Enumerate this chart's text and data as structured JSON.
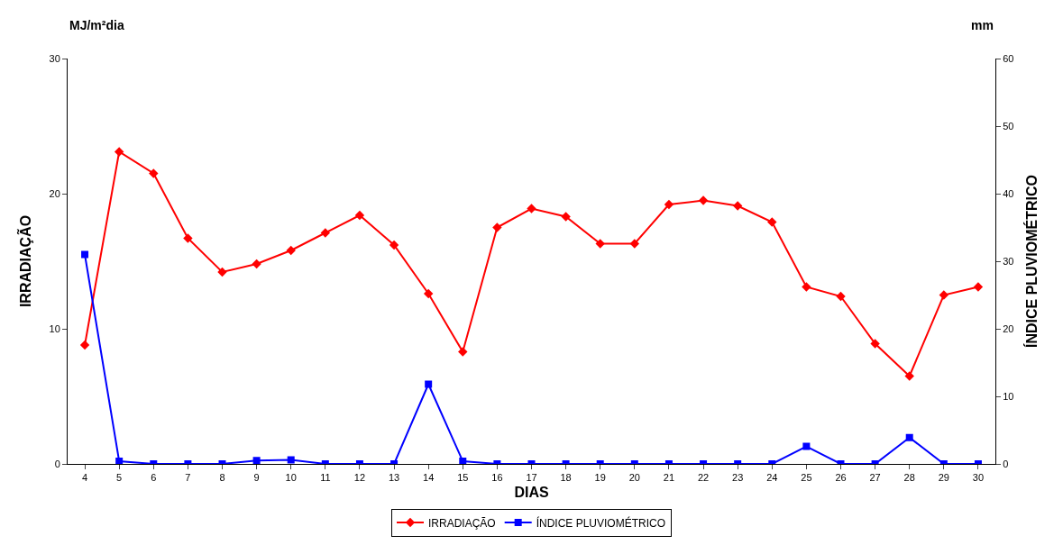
{
  "chart_data": {
    "type": "line",
    "xlabel": "DIAS",
    "ylabel": "IRRADIAÇÃO",
    "y2label": "ÍNDICE PLUVIOMÉTRICO",
    "annotations": [
      "MJ/m²dia",
      "mm"
    ],
    "categories": [
      "4",
      "5",
      "6",
      "7",
      "8",
      "9",
      "10",
      "11",
      "12",
      "13",
      "14",
      "15",
      "16",
      "17",
      "18",
      "19",
      "20",
      "21",
      "22",
      "23",
      "24",
      "25",
      "26",
      "27",
      "28",
      "29",
      "30"
    ],
    "series": [
      {
        "name": "IRRADIAÇÃO",
        "color": "#ff0000",
        "marker": "diamond",
        "values": [
          8.8,
          23.1,
          21.5,
          16.7,
          14.2,
          14.8,
          15.8,
          17.1,
          18.4,
          16.2,
          12.6,
          8.3,
          17.5,
          18.9,
          18.3,
          16.3,
          16.3,
          19.2,
          19.5,
          19.1,
          17.9,
          13.1,
          12.4,
          8.9,
          6.5,
          12.5,
          13.1
        ]
      },
      {
        "name": "ÍNDICE PLUVIOMÉTRICO",
        "color": "#0000ff",
        "marker": "square",
        "axis": "y2",
        "values": [
          31.0,
          0.4,
          0,
          0,
          0,
          0.5,
          0.6,
          0,
          0,
          0,
          11.8,
          0.4,
          0,
          0,
          0,
          0,
          0,
          0,
          0,
          0,
          0,
          2.6,
          0,
          0,
          3.9,
          0,
          0
        ]
      }
    ],
    "ylim": [
      0,
      30
    ],
    "yticks": [
      0,
      10,
      20,
      30
    ],
    "y2lim": [
      0,
      60
    ],
    "y2ticks": [
      0,
      10,
      20,
      30,
      40,
      50,
      60
    ],
    "legend": "bottom"
  }
}
